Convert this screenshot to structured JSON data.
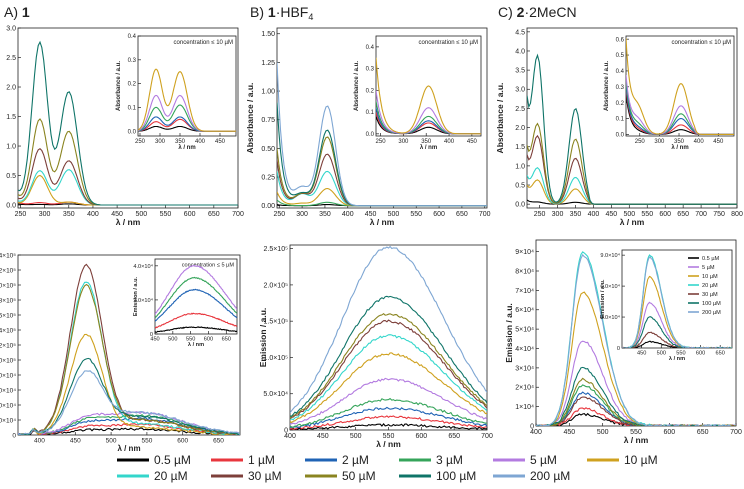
{
  "colors": {
    "c0_5": "#000000",
    "c1": "#e8363d",
    "c2": "#1f63b5",
    "c3": "#35a45a",
    "c5": "#b37be0",
    "c10": "#cfa11f",
    "c20": "#33d6cb",
    "c30": "#7d3f3a",
    "c50": "#8a8420",
    "c100": "#0f7468",
    "c200": "#7ea6d3"
  },
  "legend": {
    "entries": [
      {
        "label": "0.5 µM",
        "color": "#000000"
      },
      {
        "label": "1 µM",
        "color": "#e8363d"
      },
      {
        "label": "2 µM",
        "color": "#1f63b5"
      },
      {
        "label": "3 µM",
        "color": "#35a45a"
      },
      {
        "label": "5 µM",
        "color": "#b37be0"
      },
      {
        "label": "10 µM",
        "color": "#cfa11f"
      },
      {
        "label": "20 µM",
        "color": "#33d6cb"
      },
      {
        "label": "30 µM",
        "color": "#7d3f3a"
      },
      {
        "label": "50 µM",
        "color": "#8a8420"
      },
      {
        "label": "100 µM",
        "color": "#0f7468"
      },
      {
        "label": "200 µM",
        "color": "#7ea6d3"
      }
    ]
  },
  "panels": {
    "A": {
      "prefix": "A) ",
      "compound": "1",
      "suffix": "",
      "sub": "",
      "suffix2": ""
    },
    "B": {
      "prefix": "B) ",
      "compound": "1",
      "suffix": "·HBF",
      "sub": "4",
      "suffix2": ""
    },
    "C": {
      "prefix": "C) ",
      "compound": "2",
      "suffix": "·2MeCN",
      "sub": "",
      "suffix2": ""
    }
  },
  "chart_data": [
    {
      "id": "A_abs",
      "type": "line",
      "title": "",
      "xlabel": "λ / nm",
      "ylabel": "Absorbance / a.u.",
      "xlim": [
        245,
        700
      ],
      "ylim": [
        -0.05,
        3.0
      ],
      "xticks": [
        250,
        300,
        350,
        400,
        450,
        500,
        550,
        600,
        650,
        700
      ],
      "yticks": [
        0.0,
        0.5,
        1.0,
        1.5,
        2.0,
        2.5,
        3.0
      ],
      "ytick_labels": [
        "0.0",
        "0.5",
        "1.0",
        "1.5",
        "2.0",
        "2.5",
        "3.0"
      ],
      "profile": "abs",
      "peak_wavelengths": [
        290,
        350
      ],
      "cutoff": 415,
      "series": [
        {
          "name": "0.5 µM",
          "a": 0.01,
          "b": 0.02,
          "c": 0.02
        },
        {
          "name": "1 µM",
          "a": 0.04,
          "b": 0.05,
          "c": 0.05
        },
        {
          "name": "10 µM",
          "a": 0.5,
          "b": 0.05,
          "c": 0.03
        },
        {
          "name": "20 µM",
          "a": 0.58,
          "b": 0.6,
          "c": 0.06
        },
        {
          "name": "30 µM",
          "a": 0.95,
          "b": 0.75,
          "c": 0.1
        },
        {
          "name": "50 µM",
          "a": 1.45,
          "b": 1.25,
          "c": 0.15
        },
        {
          "name": "100 µM",
          "a": 2.75,
          "b": 1.92,
          "c": 0.2
        }
      ]
    },
    {
      "id": "A_abs_inset",
      "type": "line",
      "title": "concentration ≤ 10 µM",
      "xlabel": "λ / nm",
      "ylabel": "Absorbance / a.u.",
      "xlim": [
        245,
        490
      ],
      "ylim": [
        -0.02,
        0.4
      ],
      "xticks": [
        250,
        300,
        350,
        400,
        450
      ],
      "yticks": [
        0.0,
        0.1,
        0.2,
        0.3,
        0.4
      ],
      "ytick_labels": [
        "0.0",
        "0.1",
        "0.2",
        "0.3",
        "0.4"
      ],
      "profile": "abs",
      "peak_wavelengths": [
        290,
        350
      ],
      "cutoff": 415,
      "series": [
        {
          "name": "0.5 µM",
          "a": 0.02,
          "b": 0.02,
          "c": 0.0
        },
        {
          "name": "1 µM",
          "a": 0.04,
          "b": 0.05,
          "c": 0.0
        },
        {
          "name": "2 µM",
          "a": 0.06,
          "b": 0.06,
          "c": 0.0
        },
        {
          "name": "3 µM",
          "a": 0.1,
          "b": 0.11,
          "c": 0.0
        },
        {
          "name": "5 µM",
          "a": 0.15,
          "b": 0.15,
          "c": 0.0
        },
        {
          "name": "10 µM",
          "a": 0.26,
          "b": 0.25,
          "c": 0.0
        }
      ]
    },
    {
      "id": "B_abs",
      "type": "line",
      "title": "",
      "xlabel": "λ / nm",
      "ylabel": "Absorbance / a.u.",
      "xlim": [
        245,
        705
      ],
      "ylim": [
        -0.02,
        1.55
      ],
      "xticks": [
        250,
        300,
        350,
        400,
        450,
        500,
        550,
        600,
        650,
        700
      ],
      "yticks": [
        0.0,
        0.25,
        0.5,
        0.75,
        1.0,
        1.25,
        1.5
      ],
      "ytick_labels": [
        "0.00",
        "0.25",
        "0.50",
        "0.75",
        "1.00",
        "1.25",
        "1.50"
      ],
      "profile": "abs",
      "peak_wavelengths": [
        300,
        355
      ],
      "cutoff": 440,
      "series": [
        {
          "name": "0.5 µM",
          "a": 0.0,
          "b": 0.01,
          "c": 0.01
        },
        {
          "name": "3 µM",
          "a": 0.0,
          "b": 0.03,
          "c": 0.05
        },
        {
          "name": "10 µM",
          "a": 0.02,
          "b": 0.15,
          "c": 0.12
        },
        {
          "name": "20 µM",
          "a": 0.1,
          "b": 0.3,
          "c": 0.3
        },
        {
          "name": "30 µM",
          "a": 0.1,
          "b": 0.45,
          "c": 0.4
        },
        {
          "name": "50 µM",
          "a": 0.1,
          "b": 0.6,
          "c": 0.5
        },
        {
          "name": "100 µM",
          "a": 0.1,
          "b": 0.66,
          "c": 0.9
        },
        {
          "name": "200 µM",
          "a": 0.15,
          "b": 0.87,
          "c": 1.25
        }
      ]
    },
    {
      "id": "B_abs_inset",
      "type": "line",
      "title": "concentration ≤ 10 µM",
      "xlabel": "λ / nm",
      "ylabel": "Absorbance / a.u.",
      "xlim": [
        240,
        470
      ],
      "ylim": [
        -0.01,
        0.45
      ],
      "xticks": [
        250,
        300,
        350,
        400,
        450
      ],
      "yticks": [
        0.0,
        0.1,
        0.2,
        0.3,
        0.4
      ],
      "ytick_labels": [
        "0.0",
        "0.1",
        "0.2",
        "0.3",
        "0.4"
      ],
      "profile": "abs",
      "peak_wavelengths": [
        300,
        355
      ],
      "cutoff": 430,
      "series": [
        {
          "name": "0.5 µM",
          "a": 0.0,
          "b": 0.03,
          "c": 0.08
        },
        {
          "name": "1 µM",
          "a": 0.0,
          "b": 0.05,
          "c": 0.1
        },
        {
          "name": "2 µM",
          "a": 0.0,
          "b": 0.06,
          "c": 0.12
        },
        {
          "name": "3 µM",
          "a": 0.0,
          "b": 0.08,
          "c": 0.15
        },
        {
          "name": "5 µM",
          "a": 0.0,
          "b": 0.12,
          "c": 0.2
        },
        {
          "name": "10 µM",
          "a": 0.0,
          "b": 0.22,
          "c": 0.35
        }
      ]
    },
    {
      "id": "C_abs",
      "type": "line",
      "title": "",
      "xlabel": "λ / nm",
      "ylabel": "Absorbance / a.u.",
      "xlim": [
        215,
        800
      ],
      "ylim": [
        -0.1,
        4.6
      ],
      "xticks": [
        250,
        300,
        350,
        400,
        450,
        500,
        550,
        600,
        650,
        700,
        750,
        800
      ],
      "yticks": [
        0.0,
        0.5,
        1.0,
        1.5,
        2.0,
        2.5,
        3.0,
        3.5,
        4.0,
        4.5
      ],
      "ytick_labels": [
        "0.0",
        "0.5",
        "1.0",
        "1.5",
        "2.0",
        "2.5",
        "3.0",
        "3.5",
        "4.0",
        "4.5"
      ],
      "profile": "abs",
      "peak_wavelengths": [
        245,
        350
      ],
      "cutoff": 385,
      "series": [
        {
          "name": "0.5 µM",
          "a": 0.05,
          "b": 0.05,
          "c": 0.1
        },
        {
          "name": "10 µM",
          "a": 0.6,
          "b": 0.4,
          "c": 0.4
        },
        {
          "name": "20 µM",
          "a": 0.9,
          "b": 0.7,
          "c": 0.6
        },
        {
          "name": "30 µM",
          "a": 1.7,
          "b": 1.2,
          "c": 1.0
        },
        {
          "name": "50 µM",
          "a": 2.0,
          "b": 1.7,
          "c": 1.2
        },
        {
          "name": "100 µM",
          "a": 3.7,
          "b": 2.5,
          "c": 2.2
        }
      ]
    },
    {
      "id": "C_abs_inset",
      "type": "line",
      "title": "concentration ≤ 10 µM",
      "xlabel": "λ / nm",
      "ylabel": "Absorbance / a.u.",
      "xlim": [
        215,
        490
      ],
      "ylim": [
        -0.01,
        0.62
      ],
      "xticks": [
        250,
        300,
        350,
        400,
        450
      ],
      "yticks": [
        0.0,
        0.1,
        0.2,
        0.3,
        0.4,
        0.5,
        0.6
      ],
      "ytick_labels": [
        "0.0",
        "0.1",
        "0.2",
        "0.3",
        "0.4",
        "0.5",
        "0.6"
      ],
      "profile": "abs",
      "peak_wavelengths": [
        245,
        355
      ],
      "cutoff": 390,
      "series": [
        {
          "name": "0.5 µM",
          "a": 0.01,
          "b": 0.03,
          "c": 0.25
        },
        {
          "name": "1 µM",
          "a": 0.02,
          "b": 0.06,
          "c": 0.28
        },
        {
          "name": "2 µM",
          "a": 0.03,
          "b": 0.1,
          "c": 0.3
        },
        {
          "name": "3 µM",
          "a": 0.05,
          "b": 0.13,
          "c": 0.33
        },
        {
          "name": "5 µM",
          "a": 0.08,
          "b": 0.18,
          "c": 0.36
        },
        {
          "name": "10 µM",
          "a": 0.15,
          "b": 0.32,
          "c": 0.58
        }
      ]
    },
    {
      "id": "A_em",
      "type": "line",
      "title": "",
      "xlabel": "λ / nm",
      "ylabel": "Emission / a.u.",
      "xlim": [
        370,
        680
      ],
      "ylim": [
        0,
        240000
      ],
      "xticks": [
        400,
        450,
        500,
        550,
        600,
        650
      ],
      "yticks": [
        0,
        20000,
        40000,
        60000,
        80000,
        100000,
        120000,
        140000,
        160000,
        180000,
        200000,
        220000,
        240000
      ],
      "ytick_labels": [
        "0",
        "2.0×10⁴",
        "4.0×10⁴",
        "6.0×10⁴",
        "8.0×10⁴",
        "1.0×10⁵",
        "1.2×10⁵",
        "1.4×10⁵",
        "1.6×10⁵",
        "1.8×10⁵",
        "2.0×10⁵",
        "2.2×10⁵",
        "2.4×10⁵"
      ],
      "profile": "em_a",
      "peak_wavelength": 465,
      "series": [
        {
          "name": "0.5 µM",
          "peak": 3000,
          "tail": 8000
        },
        {
          "name": "1 µM",
          "peak": 5000,
          "tail": 14000
        },
        {
          "name": "2 µM",
          "peak": 8000,
          "tail": 22000
        },
        {
          "name": "3 µM",
          "peak": 10000,
          "tail": 26000
        },
        {
          "name": "5 µM",
          "peak": 12000,
          "tail": 30000
        },
        {
          "name": "10 µM",
          "peak": 130000,
          "tail": 10000
        },
        {
          "name": "20 µM",
          "peak": 198000,
          "tail": 15000
        },
        {
          "name": "30 µM",
          "peak": 218000,
          "tail": 20000
        },
        {
          "name": "50 µM",
          "peak": 190000,
          "tail": 20000
        },
        {
          "name": "100 µM",
          "peak": 90000,
          "tail": 25000
        },
        {
          "name": "200 µM",
          "peak": 72000,
          "tail": 30000
        }
      ]
    },
    {
      "id": "A_em_inset",
      "type": "line",
      "title": "concentration ≤ 5 µM",
      "xlabel": "λ / nm",
      "ylabel": "Emission / a.u.",
      "xlim": [
        450,
        680
      ],
      "ylim": [
        0,
        44000
      ],
      "xticks": [
        450,
        500,
        550,
        600,
        650
      ],
      "yticks": [
        0,
        20000,
        40000
      ],
      "ytick_labels": [
        "0",
        "2.0×10⁴",
        "4.0×10⁴"
      ],
      "profile": "em_broad",
      "peak_wavelength": 560,
      "series": [
        {
          "name": "0.5 µM",
          "peak": 4000
        },
        {
          "name": "1 µM",
          "peak": 12000
        },
        {
          "name": "2 µM",
          "peak": 26000
        },
        {
          "name": "3 µM",
          "peak": 33000
        },
        {
          "name": "5 µM",
          "peak": 40000
        }
      ]
    },
    {
      "id": "B_em",
      "type": "line",
      "title": "",
      "xlabel": "λ / nm",
      "ylabel": "Emission / a.u.",
      "xlim": [
        400,
        700
      ],
      "ylim": [
        0,
        255000
      ],
      "xticks": [
        400,
        450,
        500,
        550,
        600,
        650,
        700
      ],
      "yticks": [
        0,
        50000,
        100000,
        150000,
        200000,
        250000
      ],
      "ytick_labels": [
        "0",
        "5.0×10⁴",
        "1.0×10⁵",
        "1.5×10⁵",
        "2.0×10⁵",
        "2.5×10⁵"
      ],
      "profile": "em_broad",
      "peak_wavelength": 550,
      "series": [
        {
          "name": "0.5 µM",
          "peak": 7000
        },
        {
          "name": "1 µM",
          "peak": 18000
        },
        {
          "name": "2 µM",
          "peak": 30000
        },
        {
          "name": "3 µM",
          "peak": 42000
        },
        {
          "name": "5 µM",
          "peak": 70000
        },
        {
          "name": "10 µM",
          "peak": 105000
        },
        {
          "name": "20 µM",
          "peak": 130000
        },
        {
          "name": "30 µM",
          "peak": 150000
        },
        {
          "name": "50 µM",
          "peak": 160000
        },
        {
          "name": "100 µM",
          "peak": 183000
        },
        {
          "name": "200 µM",
          "peak": 252000
        }
      ]
    },
    {
      "id": "C_em",
      "type": "line",
      "title": "",
      "xlabel": "λ / nm",
      "ylabel": "Emission / a.u.",
      "xlim": [
        400,
        700
      ],
      "ylim": [
        0,
        96000
      ],
      "xticks": [
        400,
        450,
        500,
        550,
        600,
        650,
        700
      ],
      "yticks": [
        0,
        10000,
        20000,
        30000,
        40000,
        50000,
        60000,
        70000,
        80000,
        90000
      ],
      "ytick_labels": [
        "0",
        "1×10⁴",
        "2×10⁴",
        "3×10⁴",
        "4×10⁴",
        "5×10⁴",
        "6×10⁴",
        "7×10⁴",
        "8×10⁴",
        "9×10⁴"
      ],
      "profile": "em_c",
      "peak_wavelength": 470,
      "series": [
        {
          "name": "0.5 µM",
          "peak": 6000
        },
        {
          "name": "1 µM",
          "peak": 9000
        },
        {
          "name": "2 µM",
          "peak": 17000
        },
        {
          "name": "3 µM",
          "peak": 21000
        },
        {
          "name": "5 µM",
          "peak": 44000
        },
        {
          "name": "10 µM",
          "peak": 69000
        },
        {
          "name": "20 µM",
          "peak": 90000
        },
        {
          "name": "30 µM",
          "peak": 15000
        },
        {
          "name": "50 µM",
          "peak": 24000
        },
        {
          "name": "100 µM",
          "peak": 30000
        },
        {
          "name": "200 µM",
          "peak": 88000
        }
      ]
    },
    {
      "id": "C_em_inset",
      "type": "line",
      "title": "",
      "xlabel": "λ / nm",
      "ylabel": "Emission / a.u.",
      "xlim": [
        400,
        680
      ],
      "ylim": [
        0,
        95000
      ],
      "xticks": [
        450,
        500,
        550,
        600,
        650
      ],
      "yticks": [
        0,
        30000,
        60000,
        90000
      ],
      "ytick_labels": [
        "0",
        "3.0×10⁴",
        "6.0×10⁴",
        "9.0×10⁴"
      ],
      "profile": "em_c",
      "peak_wavelength": 470,
      "inset_legend": [
        "0.5 µM",
        "5 µM",
        "10 µM",
        "20 µM",
        "30 µM",
        "100 µM",
        "200 µM"
      ],
      "series": [
        {
          "name": "0.5 µM",
          "peak": 6000
        },
        {
          "name": "5 µM",
          "peak": 44000
        },
        {
          "name": "10 µM",
          "peak": 69000
        },
        {
          "name": "20 µM",
          "peak": 90000
        },
        {
          "name": "30 µM",
          "peak": 15000
        },
        {
          "name": "100 µM",
          "peak": 30000
        },
        {
          "name": "200 µM",
          "peak": 88000
        }
      ]
    }
  ]
}
